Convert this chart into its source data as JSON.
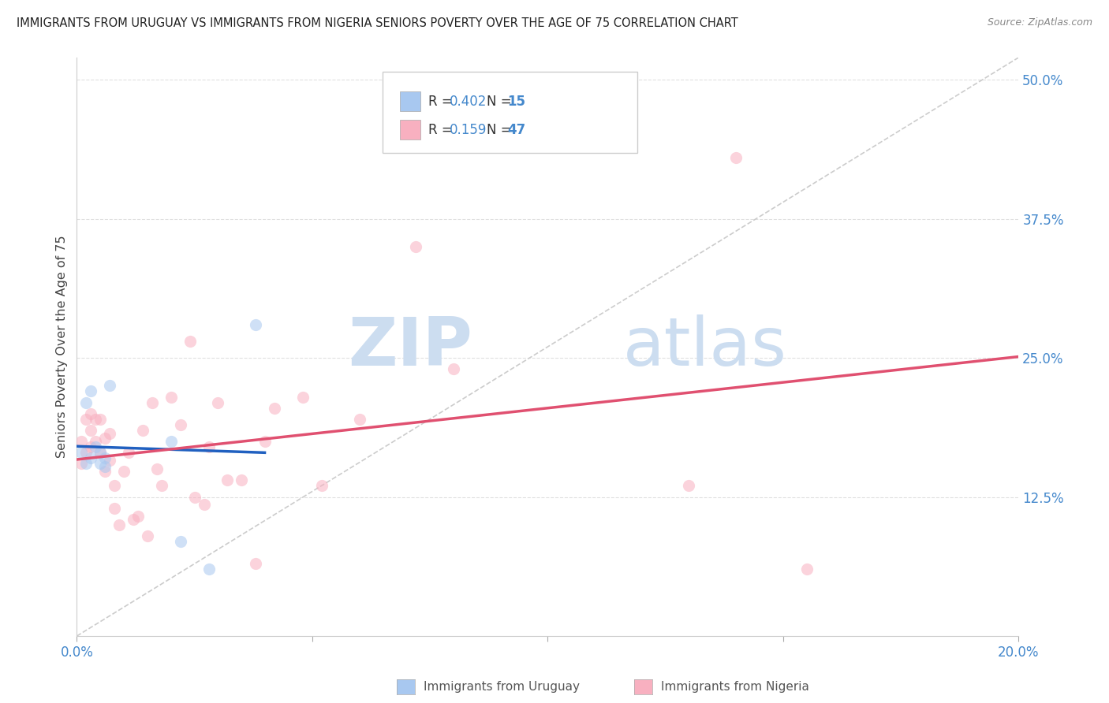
{
  "title": "IMMIGRANTS FROM URUGUAY VS IMMIGRANTS FROM NIGERIA SENIORS POVERTY OVER THE AGE OF 75 CORRELATION CHART",
  "source": "Source: ZipAtlas.com",
  "ylabel": "Seniors Poverty Over the Age of 75",
  "xlim": [
    0.0,
    0.2
  ],
  "ylim": [
    0.0,
    0.52
  ],
  "xticks": [
    0.0,
    0.05,
    0.1,
    0.15,
    0.2
  ],
  "xticklabels": [
    "0.0%",
    "",
    "",
    "",
    "20.0%"
  ],
  "ytick_positions": [
    0.125,
    0.25,
    0.375,
    0.5
  ],
  "ytick_labels": [
    "12.5%",
    "25.0%",
    "37.5%",
    "50.0%"
  ],
  "grid_color": "#e0e0e0",
  "background_color": "#ffffff",
  "uruguay_color": "#a8c8f0",
  "nigeria_color": "#f8b0c0",
  "trendline_uruguay_color": "#2060c0",
  "trendline_nigeria_color": "#e05070",
  "diagonal_color": "#cccccc",
  "R_uruguay": 0.402,
  "N_uruguay": 15,
  "R_nigeria": 0.159,
  "N_nigeria": 47,
  "legend_label_uruguay": "Immigrants from Uruguay",
  "legend_label_nigeria": "Immigrants from Nigeria",
  "uruguay_x": [
    0.001,
    0.002,
    0.002,
    0.003,
    0.003,
    0.004,
    0.005,
    0.005,
    0.006,
    0.006,
    0.007,
    0.02,
    0.022,
    0.028,
    0.038
  ],
  "uruguay_y": [
    0.165,
    0.21,
    0.155,
    0.16,
    0.22,
    0.17,
    0.155,
    0.165,
    0.152,
    0.16,
    0.225,
    0.175,
    0.085,
    0.06,
    0.28
  ],
  "nigeria_x": [
    0.001,
    0.001,
    0.002,
    0.002,
    0.003,
    0.003,
    0.003,
    0.004,
    0.004,
    0.005,
    0.005,
    0.006,
    0.006,
    0.007,
    0.007,
    0.008,
    0.008,
    0.009,
    0.01,
    0.011,
    0.012,
    0.013,
    0.014,
    0.015,
    0.016,
    0.017,
    0.018,
    0.02,
    0.022,
    0.024,
    0.025,
    0.027,
    0.028,
    0.03,
    0.032,
    0.035,
    0.038,
    0.04,
    0.042,
    0.048,
    0.052,
    0.06,
    0.072,
    0.08,
    0.13,
    0.14,
    0.155
  ],
  "nigeria_y": [
    0.155,
    0.175,
    0.165,
    0.195,
    0.17,
    0.185,
    0.2,
    0.175,
    0.195,
    0.165,
    0.195,
    0.178,
    0.148,
    0.158,
    0.182,
    0.115,
    0.135,
    0.1,
    0.148,
    0.165,
    0.105,
    0.108,
    0.185,
    0.09,
    0.21,
    0.15,
    0.135,
    0.215,
    0.19,
    0.265,
    0.125,
    0.118,
    0.17,
    0.21,
    0.14,
    0.14,
    0.065,
    0.175,
    0.205,
    0.215,
    0.135,
    0.195,
    0.35,
    0.24,
    0.135,
    0.43,
    0.06
  ],
  "marker_size": 120,
  "marker_alpha": 0.55,
  "watermark_zip": "ZIP",
  "watermark_atlas": "atlas",
  "watermark_color_zip": "#ccddf0",
  "watermark_color_atlas": "#ccddf0",
  "watermark_fontsize": 62
}
